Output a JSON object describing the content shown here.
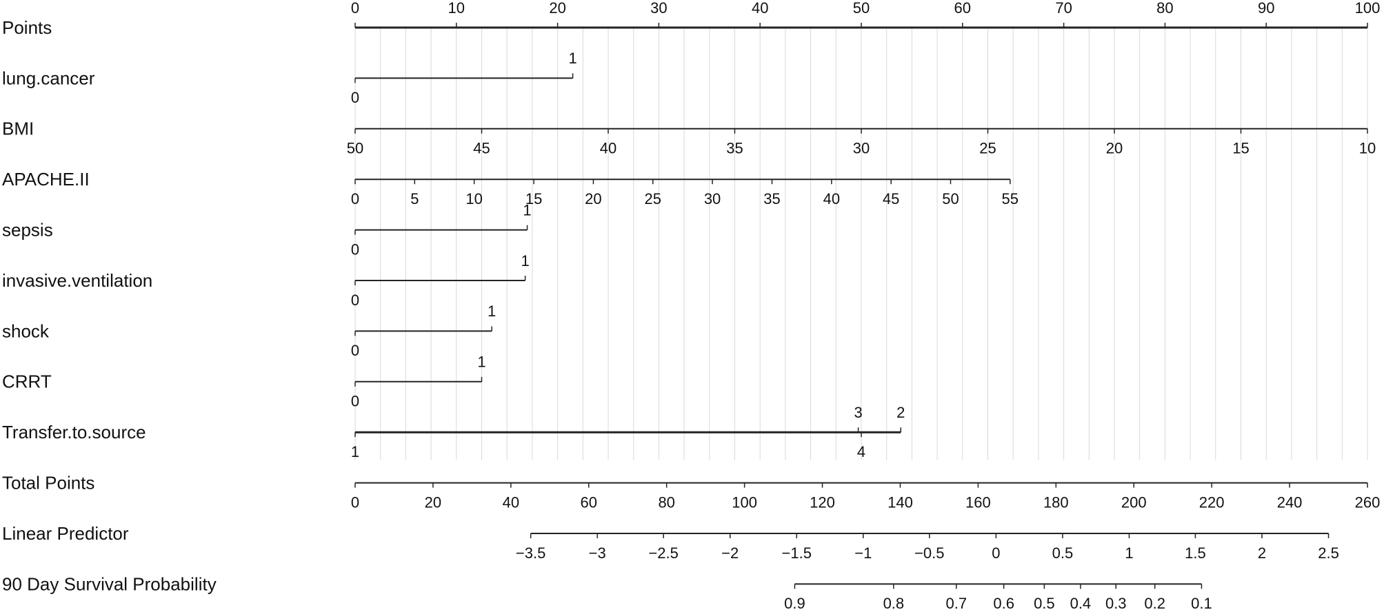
{
  "chart_data": {
    "type": "nomogram",
    "xlim": [
      0,
      100
    ],
    "total_xlim": [
      0,
      260
    ],
    "grid": [
      0,
      2.5,
      5,
      7.5,
      10,
      12.5,
      15,
      17.5,
      20,
      22.5,
      25,
      27.5,
      30,
      32.5,
      35,
      37.5,
      40,
      42.5,
      45,
      47.5,
      50,
      52.5,
      55,
      57.5,
      60,
      62.5,
      65,
      67.5,
      70,
      72.5,
      75,
      77.5,
      80,
      82.5,
      85,
      87.5,
      90,
      92.5,
      95,
      97.5,
      100
    ],
    "rows": [
      {
        "label": "Points",
        "scale": "points",
        "ticks": [
          {
            "label": 0,
            "at": 0,
            "side": "above"
          },
          {
            "label": 10,
            "at": 10,
            "side": "above"
          },
          {
            "label": 20,
            "at": 20,
            "side": "above"
          },
          {
            "label": 30,
            "at": 30,
            "side": "above"
          },
          {
            "label": 40,
            "at": 40,
            "side": "above"
          },
          {
            "label": 50,
            "at": 50,
            "side": "above"
          },
          {
            "label": 60,
            "at": 60,
            "side": "above"
          },
          {
            "label": 70,
            "at": 70,
            "side": "above"
          },
          {
            "label": 80,
            "at": 80,
            "side": "above"
          },
          {
            "label": 90,
            "at": 90,
            "side": "above"
          },
          {
            "label": 100,
            "at": 100,
            "side": "above"
          }
        ]
      },
      {
        "label": "lung.cancer",
        "scale": "points",
        "ticks": [
          {
            "label": 0,
            "at": 0,
            "side": "below"
          },
          {
            "label": 1,
            "at": 21.5,
            "side": "above"
          }
        ]
      },
      {
        "label": "BMI",
        "scale": "points",
        "ticks": [
          {
            "label": 50,
            "at": 0,
            "side": "below"
          },
          {
            "label": 45,
            "at": 12.5,
            "side": "below"
          },
          {
            "label": 40,
            "at": 25,
            "side": "below"
          },
          {
            "label": 35,
            "at": 37.5,
            "side": "below"
          },
          {
            "label": 30,
            "at": 50,
            "side": "below"
          },
          {
            "label": 25,
            "at": 62.5,
            "side": "below"
          },
          {
            "label": 20,
            "at": 75,
            "side": "below"
          },
          {
            "label": 15,
            "at": 87.5,
            "side": "below"
          },
          {
            "label": 10,
            "at": 100,
            "side": "below"
          }
        ]
      },
      {
        "label": "APACHE.II",
        "scale": "points",
        "ticks": [
          {
            "label": 0,
            "at": 0,
            "side": "below"
          },
          {
            "label": 5,
            "at": 5.88,
            "side": "below"
          },
          {
            "label": 10,
            "at": 11.76,
            "side": "below"
          },
          {
            "label": 15,
            "at": 17.65,
            "side": "below"
          },
          {
            "label": 20,
            "at": 23.53,
            "side": "below"
          },
          {
            "label": 25,
            "at": 29.41,
            "side": "below"
          },
          {
            "label": 30,
            "at": 35.29,
            "side": "below"
          },
          {
            "label": 35,
            "at": 41.18,
            "side": "below"
          },
          {
            "label": 40,
            "at": 47.06,
            "side": "below"
          },
          {
            "label": 45,
            "at": 52.94,
            "side": "below"
          },
          {
            "label": 50,
            "at": 58.82,
            "side": "below"
          },
          {
            "label": 55,
            "at": 64.7,
            "side": "below"
          }
        ]
      },
      {
        "label": "sepsis",
        "scale": "points",
        "ticks": [
          {
            "label": 0,
            "at": 0,
            "side": "below"
          },
          {
            "label": 1,
            "at": 17,
            "side": "above"
          }
        ]
      },
      {
        "label": "invasive.ventilation",
        "scale": "points",
        "ticks": [
          {
            "label": 0,
            "at": 0,
            "side": "below"
          },
          {
            "label": 1,
            "at": 16.8,
            "side": "above"
          }
        ]
      },
      {
        "label": "shock",
        "scale": "points",
        "ticks": [
          {
            "label": 0,
            "at": 0,
            "side": "below"
          },
          {
            "label": 1,
            "at": 13.5,
            "side": "above"
          }
        ]
      },
      {
        "label": "CRRT",
        "scale": "points",
        "ticks": [
          {
            "label": 0,
            "at": 0,
            "side": "below"
          },
          {
            "label": 1,
            "at": 12.5,
            "side": "above"
          }
        ]
      },
      {
        "label": "Transfer.to.source",
        "scale": "points",
        "ticks": [
          {
            "label": 1,
            "at": 0,
            "side": "below"
          },
          {
            "label": 3,
            "at": 49.7,
            "side": "above"
          },
          {
            "label": 4,
            "at": 50,
            "side": "below"
          },
          {
            "label": 2,
            "at": 53.9,
            "side": "above"
          }
        ]
      },
      {
        "label": "Total Points",
        "scale": "total",
        "ticks": [
          {
            "label": 0,
            "at": 0,
            "side": "below"
          },
          {
            "label": 20,
            "at": 20,
            "side": "below"
          },
          {
            "label": 40,
            "at": 40,
            "side": "below"
          },
          {
            "label": 60,
            "at": 60,
            "side": "below"
          },
          {
            "label": 80,
            "at": 80,
            "side": "below"
          },
          {
            "label": 100,
            "at": 100,
            "side": "below"
          },
          {
            "label": 120,
            "at": 120,
            "side": "below"
          },
          {
            "label": 140,
            "at": 140,
            "side": "below"
          },
          {
            "label": 160,
            "at": 160,
            "side": "below"
          },
          {
            "label": 180,
            "at": 180,
            "side": "below"
          },
          {
            "label": 200,
            "at": 200,
            "side": "below"
          },
          {
            "label": 220,
            "at": 220,
            "side": "below"
          },
          {
            "label": 240,
            "at": 240,
            "side": "below"
          },
          {
            "label": 260,
            "at": 260,
            "side": "below"
          }
        ]
      },
      {
        "label": "Linear Predictor",
        "scale": "total",
        "ticks": [
          {
            "label": "−3.5",
            "at": 45.1,
            "side": "below"
          },
          {
            "label": "−3",
            "at": 62.2,
            "side": "below"
          },
          {
            "label": "−2.5",
            "at": 79.2,
            "side": "below"
          },
          {
            "label": "−2",
            "at": 96.3,
            "side": "below"
          },
          {
            "label": "−1.5",
            "at": 113.4,
            "side": "below"
          },
          {
            "label": "−1",
            "at": 130.5,
            "side": "below"
          },
          {
            "label": "−0.5",
            "at": 147.5,
            "side": "below"
          },
          {
            "label": 0,
            "at": 164.6,
            "side": "below"
          },
          {
            "label": 0.5,
            "at": 181.7,
            "side": "below"
          },
          {
            "label": 1,
            "at": 198.8,
            "side": "below"
          },
          {
            "label": 1.5,
            "at": 215.8,
            "side": "below"
          },
          {
            "label": 2,
            "at": 232.9,
            "side": "below"
          },
          {
            "label": 2.5,
            "at": 250,
            "side": "below"
          }
        ]
      },
      {
        "label": "90 Day Survival Probability",
        "scale": "total",
        "ticks": [
          {
            "label": 0.9,
            "at": 112.9,
            "side": "below"
          },
          {
            "label": 0.8,
            "at": 138.3,
            "side": "below"
          },
          {
            "label": 0.7,
            "at": 154.4,
            "side": "below"
          },
          {
            "label": 0.6,
            "at": 166.6,
            "side": "below"
          },
          {
            "label": 0.5,
            "at": 177.0,
            "side": "below"
          },
          {
            "label": 0.4,
            "at": 186.3,
            "side": "below"
          },
          {
            "label": 0.3,
            "at": 195.4,
            "side": "below"
          },
          {
            "label": 0.2,
            "at": 205.4,
            "side": "below"
          },
          {
            "label": 0.1,
            "at": 217.4,
            "side": "below"
          }
        ]
      }
    ]
  }
}
